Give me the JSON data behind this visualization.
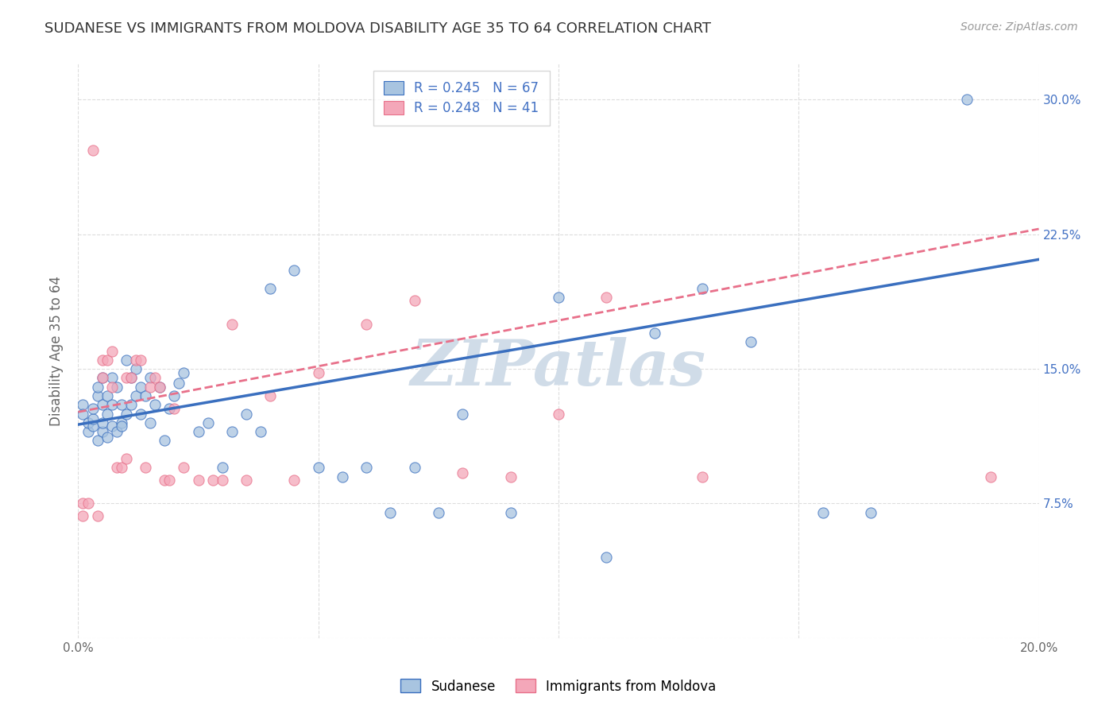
{
  "title": "SUDANESE VS IMMIGRANTS FROM MOLDOVA DISABILITY AGE 35 TO 64 CORRELATION CHART",
  "source": "Source: ZipAtlas.com",
  "ylabel": "Disability Age 35 to 64",
  "xlim": [
    0.0,
    0.2
  ],
  "ylim": [
    0.0,
    0.32
  ],
  "xticks": [
    0.0,
    0.05,
    0.1,
    0.15,
    0.2
  ],
  "xtick_labels": [
    "0.0%",
    "",
    "",
    "",
    "20.0%"
  ],
  "ytick_labels_right": [
    "",
    "7.5%",
    "15.0%",
    "22.5%",
    "30.0%"
  ],
  "yticks_right": [
    0.0,
    0.075,
    0.15,
    0.225,
    0.3
  ],
  "R_sudanese": 0.245,
  "N_sudanese": 67,
  "R_moldova": 0.248,
  "N_moldova": 41,
  "sudanese_color": "#a8c4e0",
  "moldova_color": "#f4a7b9",
  "line_sudanese_color": "#3a6fbf",
  "line_moldova_color": "#e8708a",
  "watermark": "ZIPatlas",
  "watermark_color": "#d0dce8",
  "background_color": "#ffffff",
  "grid_color": "#dddddd",
  "title_color": "#333333",
  "sudanese_x": [
    0.001,
    0.001,
    0.002,
    0.002,
    0.003,
    0.003,
    0.003,
    0.004,
    0.004,
    0.004,
    0.005,
    0.005,
    0.005,
    0.005,
    0.006,
    0.006,
    0.006,
    0.007,
    0.007,
    0.007,
    0.008,
    0.008,
    0.009,
    0.009,
    0.009,
    0.01,
    0.01,
    0.011,
    0.011,
    0.012,
    0.012,
    0.013,
    0.013,
    0.014,
    0.015,
    0.015,
    0.016,
    0.017,
    0.018,
    0.019,
    0.02,
    0.021,
    0.022,
    0.025,
    0.027,
    0.03,
    0.032,
    0.035,
    0.038,
    0.04,
    0.045,
    0.05,
    0.055,
    0.06,
    0.065,
    0.07,
    0.075,
    0.08,
    0.09,
    0.1,
    0.11,
    0.12,
    0.13,
    0.14,
    0.155,
    0.165,
    0.185
  ],
  "sudanese_y": [
    0.13,
    0.125,
    0.115,
    0.12,
    0.118,
    0.122,
    0.128,
    0.11,
    0.135,
    0.14,
    0.115,
    0.12,
    0.13,
    0.145,
    0.125,
    0.135,
    0.112,
    0.118,
    0.13,
    0.145,
    0.115,
    0.14,
    0.12,
    0.13,
    0.118,
    0.125,
    0.155,
    0.13,
    0.145,
    0.135,
    0.15,
    0.125,
    0.14,
    0.135,
    0.12,
    0.145,
    0.13,
    0.14,
    0.11,
    0.128,
    0.135,
    0.142,
    0.148,
    0.115,
    0.12,
    0.095,
    0.115,
    0.125,
    0.115,
    0.195,
    0.205,
    0.095,
    0.09,
    0.095,
    0.07,
    0.095,
    0.07,
    0.125,
    0.07,
    0.19,
    0.045,
    0.17,
    0.195,
    0.165,
    0.07,
    0.07,
    0.3
  ],
  "moldova_x": [
    0.001,
    0.001,
    0.002,
    0.003,
    0.004,
    0.005,
    0.005,
    0.006,
    0.007,
    0.007,
    0.008,
    0.009,
    0.01,
    0.01,
    0.011,
    0.012,
    0.013,
    0.014,
    0.015,
    0.016,
    0.017,
    0.018,
    0.019,
    0.02,
    0.022,
    0.025,
    0.028,
    0.03,
    0.032,
    0.035,
    0.04,
    0.045,
    0.05,
    0.06,
    0.07,
    0.08,
    0.09,
    0.1,
    0.11,
    0.13,
    0.19
  ],
  "moldova_y": [
    0.068,
    0.075,
    0.075,
    0.272,
    0.068,
    0.145,
    0.155,
    0.155,
    0.16,
    0.14,
    0.095,
    0.095,
    0.145,
    0.1,
    0.145,
    0.155,
    0.155,
    0.095,
    0.14,
    0.145,
    0.14,
    0.088,
    0.088,
    0.128,
    0.095,
    0.088,
    0.088,
    0.088,
    0.175,
    0.088,
    0.135,
    0.088,
    0.148,
    0.175,
    0.188,
    0.092,
    0.09,
    0.125,
    0.19,
    0.09,
    0.09
  ],
  "line_s_x0": 0.0,
  "line_s_y0": 0.119,
  "line_s_x1": 0.2,
  "line_s_y1": 0.211,
  "line_m_x0": 0.0,
  "line_m_y0": 0.126,
  "line_m_x1": 0.2,
  "line_m_y1": 0.228
}
